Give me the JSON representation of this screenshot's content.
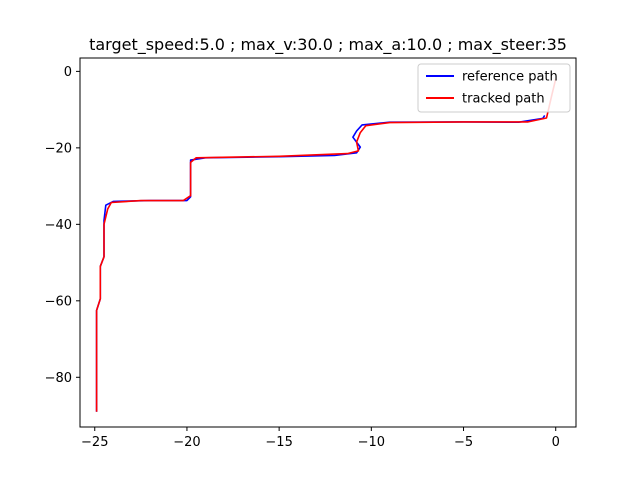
{
  "chart_data": {
    "type": "line",
    "title": "target_speed:5.0 ; max_v:30.0 ; max_a:10.0 ; max_steer:35",
    "xlabel": "",
    "ylabel": "",
    "xlim": [
      -25.8,
      1.1
    ],
    "ylim": [
      -93,
      3.5
    ],
    "xticks": [
      -25,
      -20,
      -15,
      -10,
      -5,
      0
    ],
    "yticks": [
      0,
      -20,
      -40,
      -60,
      -80
    ],
    "xtick_labels": [
      "−25",
      "−20",
      "−15",
      "−10",
      "−5",
      "0"
    ],
    "ytick_labels": [
      "0",
      "−20",
      "−40",
      "−60",
      "−80"
    ],
    "grid": false,
    "legend_position": "top-right",
    "series": [
      {
        "name": "reference path",
        "color": "#0000ff",
        "x": [
          -0.6,
          -0.7,
          -2.0,
          -5.0,
          -9.0,
          -10.5,
          -10.8,
          -11.0,
          -10.6,
          -10.8,
          -12.0,
          -15.0,
          -19.0,
          -19.8,
          -19.8,
          -20.0,
          -22.0,
          -24.0,
          -24.4,
          -24.5,
          -24.5,
          -24.7,
          -24.7,
          -24.9,
          -24.9,
          -24.9
        ],
        "y": [
          -11.5,
          -12.3,
          -13.3,
          -13.2,
          -13.3,
          -14.0,
          -15.6,
          -17.2,
          -19.8,
          -21.3,
          -22.0,
          -22.3,
          -22.6,
          -23.2,
          -32.8,
          -33.8,
          -33.8,
          -34.0,
          -35.0,
          -39.0,
          -48.5,
          -51.0,
          -59.5,
          -62.5,
          -80.0,
          -89.0
        ]
      },
      {
        "name": "tracked path",
        "color": "#ff0000",
        "x": [
          0.0,
          -0.2,
          -0.5,
          -1.5,
          -5.0,
          -9.0,
          -10.3,
          -10.6,
          -10.8,
          -10.7,
          -11.3,
          -15.0,
          -19.5,
          -19.8,
          -19.8,
          -20.2,
          -22.5,
          -24.1,
          -24.3,
          -24.5,
          -24.5,
          -24.7,
          -24.7,
          -24.9,
          -24.9,
          -24.9
        ],
        "y": [
          -2.0,
          -6.0,
          -12.2,
          -13.2,
          -13.2,
          -13.4,
          -14.2,
          -16.0,
          -18.5,
          -20.8,
          -21.5,
          -22.2,
          -22.6,
          -23.8,
          -32.5,
          -33.8,
          -33.8,
          -34.3,
          -36.0,
          -40.0,
          -48.5,
          -51.0,
          -59.5,
          -62.5,
          -80.0,
          -89.0
        ]
      }
    ]
  }
}
